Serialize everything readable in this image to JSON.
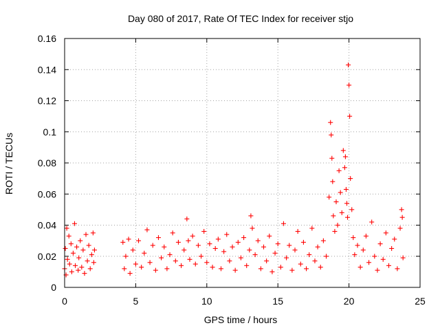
{
  "chart_data": {
    "type": "scatter",
    "title": "Day 080 of 2017, Rate Of TEC Index for receiver stjo",
    "xlabel": "GPS time / hours",
    "ylabel": "ROTI / TECUs",
    "xlim": [
      0,
      25
    ],
    "ylim": [
      0,
      0.16
    ],
    "xticks": [
      0,
      5,
      10,
      15,
      20,
      25
    ],
    "xtick_labels": [
      "0",
      "5",
      "10",
      "15",
      "20",
      "25"
    ],
    "yticks": [
      0,
      0.02,
      0.04,
      0.06,
      0.08,
      0.1,
      0.12,
      0.14,
      0.16
    ],
    "ytick_labels": [
      "0",
      "0.02",
      "0.04",
      "0.06",
      "0.08",
      "0.1",
      "0.12",
      "0.14",
      "0.16"
    ],
    "grid": true,
    "marker": "+",
    "marker_color": "#ff0000",
    "series": [
      {
        "name": "ROTI",
        "points": [
          [
            0.0,
            0.012
          ],
          [
            0.05,
            0.025
          ],
          [
            0.1,
            0.008
          ],
          [
            0.15,
            0.038
          ],
          [
            0.2,
            0.018
          ],
          [
            0.3,
            0.033
          ],
          [
            0.35,
            0.015
          ],
          [
            0.45,
            0.028
          ],
          [
            0.5,
            0.01
          ],
          [
            0.6,
            0.022
          ],
          [
            0.7,
            0.041
          ],
          [
            0.75,
            0.014
          ],
          [
            0.85,
            0.026
          ],
          [
            0.95,
            0.011
          ],
          [
            1.0,
            0.019
          ],
          [
            1.1,
            0.03
          ],
          [
            1.2,
            0.013
          ],
          [
            1.3,
            0.024
          ],
          [
            1.4,
            0.009
          ],
          [
            1.5,
            0.034
          ],
          [
            1.6,
            0.017
          ],
          [
            1.7,
            0.027
          ],
          [
            1.8,
            0.012
          ],
          [
            1.9,
            0.021
          ],
          [
            2.0,
            0.035
          ],
          [
            2.05,
            0.016
          ],
          [
            2.1,
            0.024
          ],
          [
            4.1,
            0.029
          ],
          [
            4.2,
            0.012
          ],
          [
            4.3,
            0.02
          ],
          [
            4.5,
            0.031
          ],
          [
            4.6,
            0.009
          ],
          [
            4.8,
            0.024
          ],
          [
            5.0,
            0.015
          ],
          [
            5.2,
            0.03
          ],
          [
            5.4,
            0.013
          ],
          [
            5.6,
            0.022
          ],
          [
            5.8,
            0.037
          ],
          [
            6.0,
            0.016
          ],
          [
            6.2,
            0.027
          ],
          [
            6.4,
            0.011
          ],
          [
            6.6,
            0.032
          ],
          [
            6.8,
            0.019
          ],
          [
            7.0,
            0.026
          ],
          [
            7.2,
            0.012
          ],
          [
            7.4,
            0.021
          ],
          [
            7.6,
            0.035
          ],
          [
            7.8,
            0.017
          ],
          [
            8.0,
            0.029
          ],
          [
            8.2,
            0.014
          ],
          [
            8.4,
            0.024
          ],
          [
            8.6,
            0.044
          ],
          [
            8.7,
            0.03
          ],
          [
            8.8,
            0.018
          ],
          [
            9.0,
            0.033
          ],
          [
            9.2,
            0.015
          ],
          [
            9.4,
            0.027
          ],
          [
            9.6,
            0.02
          ],
          [
            9.8,
            0.036
          ],
          [
            10.0,
            0.016
          ],
          [
            10.2,
            0.028
          ],
          [
            10.4,
            0.013
          ],
          [
            10.6,
            0.025
          ],
          [
            10.8,
            0.031
          ],
          [
            11.0,
            0.012
          ],
          [
            11.2,
            0.023
          ],
          [
            11.4,
            0.034
          ],
          [
            11.6,
            0.017
          ],
          [
            11.8,
            0.026
          ],
          [
            12.0,
            0.011
          ],
          [
            12.2,
            0.029
          ],
          [
            12.4,
            0.019
          ],
          [
            12.6,
            0.032
          ],
          [
            12.8,
            0.014
          ],
          [
            13.0,
            0.024
          ],
          [
            13.1,
            0.046
          ],
          [
            13.2,
            0.038
          ],
          [
            13.4,
            0.021
          ],
          [
            13.6,
            0.03
          ],
          [
            13.8,
            0.012
          ],
          [
            14.0,
            0.026
          ],
          [
            14.2,
            0.017
          ],
          [
            14.4,
            0.033
          ],
          [
            14.6,
            0.01
          ],
          [
            14.8,
            0.022
          ],
          [
            15.0,
            0.028
          ],
          [
            15.2,
            0.013
          ],
          [
            15.4,
            0.041
          ],
          [
            15.6,
            0.019
          ],
          [
            15.8,
            0.027
          ],
          [
            16.0,
            0.011
          ],
          [
            16.2,
            0.024
          ],
          [
            16.4,
            0.036
          ],
          [
            16.6,
            0.015
          ],
          [
            16.8,
            0.029
          ],
          [
            17.0,
            0.012
          ],
          [
            17.2,
            0.021
          ],
          [
            17.4,
            0.038
          ],
          [
            17.6,
            0.017
          ],
          [
            17.8,
            0.026
          ],
          [
            18.0,
            0.013
          ],
          [
            18.2,
            0.03
          ],
          [
            18.4,
            0.02
          ],
          [
            18.6,
            0.058
          ],
          [
            18.7,
            0.106
          ],
          [
            18.75,
            0.098
          ],
          [
            18.8,
            0.083
          ],
          [
            18.85,
            0.068
          ],
          [
            18.9,
            0.046
          ],
          [
            19.0,
            0.036
          ],
          [
            19.1,
            0.055
          ],
          [
            19.2,
            0.04
          ],
          [
            19.3,
            0.075
          ],
          [
            19.4,
            0.061
          ],
          [
            19.5,
            0.048
          ],
          [
            19.6,
            0.088
          ],
          [
            19.7,
            0.077
          ],
          [
            19.75,
            0.084
          ],
          [
            19.8,
            0.063
          ],
          [
            19.85,
            0.054
          ],
          [
            19.9,
            0.045
          ],
          [
            19.95,
            0.143
          ],
          [
            20.0,
            0.13
          ],
          [
            20.05,
            0.11
          ],
          [
            20.1,
            0.07
          ],
          [
            20.2,
            0.05
          ],
          [
            20.3,
            0.032
          ],
          [
            20.4,
            0.021
          ],
          [
            20.6,
            0.027
          ],
          [
            20.8,
            0.013
          ],
          [
            21.0,
            0.024
          ],
          [
            21.2,
            0.033
          ],
          [
            21.4,
            0.016
          ],
          [
            21.6,
            0.042
          ],
          [
            21.8,
            0.02
          ],
          [
            22.0,
            0.011
          ],
          [
            22.2,
            0.028
          ],
          [
            22.4,
            0.018
          ],
          [
            22.6,
            0.035
          ],
          [
            22.8,
            0.014
          ],
          [
            23.0,
            0.025
          ],
          [
            23.2,
            0.031
          ],
          [
            23.4,
            0.012
          ],
          [
            23.6,
            0.038
          ],
          [
            23.7,
            0.05
          ],
          [
            23.75,
            0.045
          ],
          [
            23.8,
            0.019
          ]
        ]
      }
    ]
  }
}
